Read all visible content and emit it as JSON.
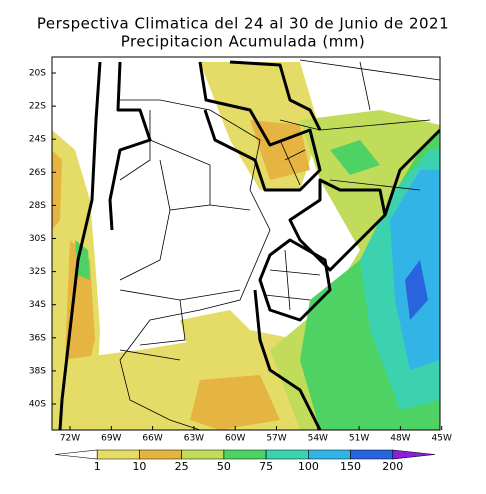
{
  "title": {
    "line1": "Perspectiva Climatica del 24 al 30 de Junio de 2021",
    "line2": "Precipitacion Acumulada (mm)"
  },
  "lat_labels": [
    "20S",
    "22S",
    "24S",
    "26S",
    "28S",
    "30S",
    "32S",
    "34S",
    "36S",
    "38S",
    "40S"
  ],
  "lon_labels": [
    "72W",
    "69W",
    "66W",
    "63W",
    "60W",
    "57W",
    "54W",
    "51W",
    "48W",
    "45W"
  ],
  "legend": {
    "levels": [
      1,
      10,
      25,
      50,
      75,
      100,
      150,
      200
    ],
    "colors": [
      "#ffffff",
      "#e4dc66",
      "#e6b440",
      "#c0dc5a",
      "#4ed264",
      "#3cd2b0",
      "#32b4e6",
      "#2a64dc",
      "#8c1edc"
    ]
  }
}
